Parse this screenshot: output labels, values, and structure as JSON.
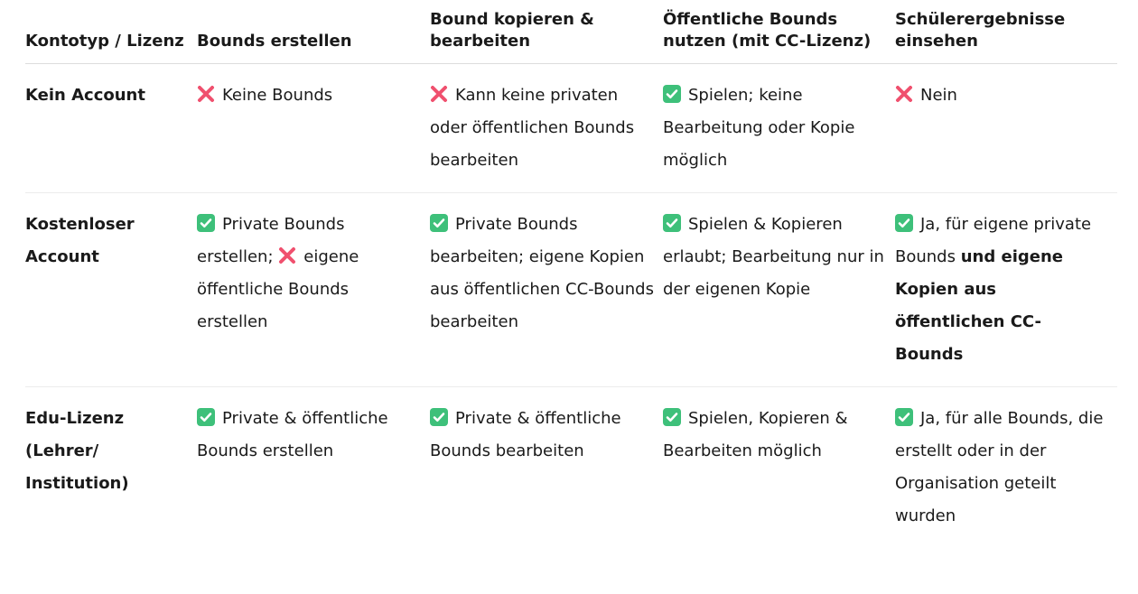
{
  "colors": {
    "check_bg": "#3ec07a",
    "cross": "#f0506e"
  },
  "headers": [
    "Kontotyp / Lizenz",
    "Bounds erstellen",
    "Bound kopieren & bearbeiten",
    "Öffentliche Bounds nutzen (mit CC-Lizenz)",
    "Schülerergebnisse einsehen"
  ],
  "rows": [
    {
      "label": "Kein Account",
      "cells": [
        [
          {
            "icon": "cross-icon"
          },
          {
            "text": "Keine Bounds"
          }
        ],
        [
          {
            "icon": "cross-icon"
          },
          {
            "text": "Kann keine privaten oder öffentlichen Bounds bearbeiten"
          }
        ],
        [
          {
            "icon": "check-icon"
          },
          {
            "text": "Spielen; keine Bearbeitung oder Kopie möglich"
          }
        ],
        [
          {
            "icon": "cross-icon"
          },
          {
            "text": "Nein"
          }
        ]
      ]
    },
    {
      "label": "Kostenloser Account",
      "cells": [
        [
          {
            "icon": "check-icon"
          },
          {
            "text": "Private Bounds erstellen; "
          },
          {
            "icon": "cross-icon"
          },
          {
            "text": "eigene öffentliche Bounds erstellen"
          }
        ],
        [
          {
            "icon": "check-icon"
          },
          {
            "text": "Private Bounds bearbeiten; eigene Kopien aus öffentlichen CC-Bounds bearbeiten"
          }
        ],
        [
          {
            "icon": "check-icon"
          },
          {
            "text": "Spielen & Kopieren erlaubt; Bearbeitung nur in der eigenen Kopie"
          }
        ],
        [
          {
            "icon": "check-icon"
          },
          {
            "text": "Ja, für eigene private Bounds "
          },
          {
            "text": "und eigene Kopien aus öffentlichen CC-Bounds",
            "bold": true
          }
        ]
      ]
    },
    {
      "label": "Edu-Lizenz (Lehrer/ Institution)",
      "cells": [
        [
          {
            "icon": "check-icon"
          },
          {
            "text": "Private & öffentliche Bounds erstellen"
          }
        ],
        [
          {
            "icon": "check-icon"
          },
          {
            "text": "Private & öffentliche Bounds bearbeiten"
          }
        ],
        [
          {
            "icon": "check-icon"
          },
          {
            "text": "Spielen, Kopieren & Bearbeiten möglich"
          }
        ],
        [
          {
            "icon": "check-icon"
          },
          {
            "text": "Ja, für alle Bounds, die erstellt oder in der Organisation geteilt wurden"
          }
        ]
      ]
    }
  ]
}
